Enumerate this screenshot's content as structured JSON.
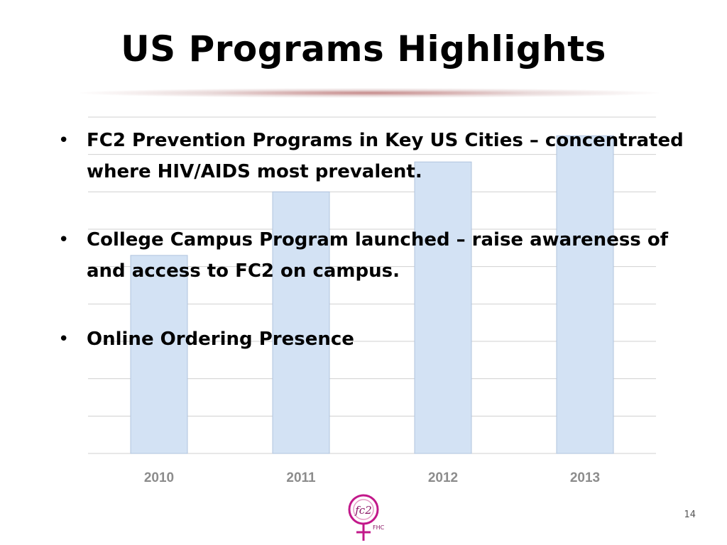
{
  "slide": {
    "title": "US Programs Highlights",
    "page_number": "14"
  },
  "bullets": [
    "FC2 Prevention Programs in Key US Cities – concentrated where HIV/AIDS most prevalent.",
    "College Campus Program launched – raise awareness of and access to FC2 on campus.",
    "Online Ordering Presence"
  ],
  "logo": {
    "text": "fc2",
    "subtext": "FHC"
  },
  "colors": {
    "bar_fill": "#d3e2f4",
    "bar_stroke": "#b0c4de",
    "grid": "#d0d0d0",
    "tick_label": "#8c8c8c",
    "logo_accent": "#c2188a"
  },
  "chart_data": {
    "type": "bar",
    "categories": [
      "2010",
      "2011",
      "2012",
      "2013"
    ],
    "values": [
      53,
      70,
      78,
      85
    ],
    "ylim": [
      0,
      90
    ],
    "grid": true,
    "legend": "none",
    "title": "",
    "xlabel": "",
    "ylabel": ""
  }
}
